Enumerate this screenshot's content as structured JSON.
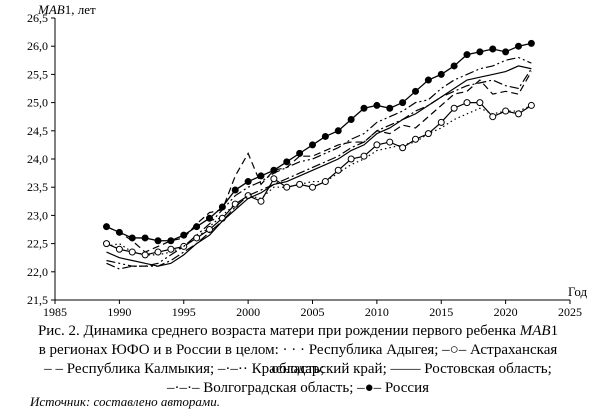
{
  "chart_data": {
    "type": "line",
    "ylabel_italic": "MAB",
    "ylabel_rest": "1, лет",
    "xlabel": "Год",
    "xlim": [
      1985,
      2025
    ],
    "ylim": [
      21.5,
      26.5
    ],
    "xticks": [
      1985,
      1990,
      1995,
      2000,
      2005,
      2010,
      2015,
      2020,
      2025
    ],
    "yticks": [
      "21,5",
      "22,0",
      "22,5",
      "23,0",
      "23,5",
      "24,0",
      "24,5",
      "25,0",
      "25,5",
      "26,0",
      "26,5"
    ],
    "x": [
      1989,
      1990,
      1991,
      1992,
      1993,
      1994,
      1995,
      1996,
      1997,
      1998,
      1999,
      2000,
      2001,
      2002,
      2003,
      2004,
      2005,
      2006,
      2007,
      2008,
      2009,
      2010,
      2011,
      2012,
      2013,
      2014,
      2015,
      2016,
      2017,
      2018,
      2019,
      2020,
      2021,
      2022
    ],
    "series": [
      {
        "name": "Республика Адыгея",
        "style": "dotted",
        "values": [
          22.45,
          22.5,
          22.35,
          22.3,
          22.3,
          22.35,
          22.45,
          22.6,
          22.8,
          23.0,
          23.2,
          23.35,
          23.3,
          23.5,
          23.5,
          23.55,
          23.6,
          23.6,
          23.75,
          23.9,
          24.0,
          24.15,
          24.2,
          24.25,
          24.3,
          24.45,
          24.55,
          24.7,
          24.8,
          24.9,
          24.8,
          24.85,
          24.85,
          24.95
        ]
      },
      {
        "name": "Астраханская область",
        "style": "open-circle",
        "values": [
          22.5,
          22.4,
          22.35,
          22.3,
          22.35,
          22.4,
          22.45,
          22.6,
          22.75,
          22.95,
          23.2,
          23.35,
          23.25,
          23.65,
          23.5,
          23.55,
          23.5,
          23.6,
          23.8,
          24.0,
          24.05,
          24.25,
          24.3,
          24.2,
          24.35,
          24.45,
          24.65,
          24.9,
          25.0,
          25.0,
          24.75,
          24.85,
          24.8,
          24.95
        ]
      },
      {
        "name": "Республика Калмыкия",
        "style": "dashed",
        "values": [
          22.8,
          22.7,
          22.55,
          22.35,
          22.45,
          22.55,
          22.6,
          22.85,
          23.05,
          23.1,
          23.7,
          24.1,
          23.55,
          23.8,
          23.85,
          24.05,
          24.05,
          24.15,
          24.25,
          24.3,
          24.3,
          24.5,
          24.45,
          24.6,
          24.55,
          24.75,
          24.95,
          25.15,
          25.2,
          25.4,
          25.15,
          25.2,
          25.15,
          25.55
        ]
      },
      {
        "name": "Краснодарский край",
        "style": "dash-dot-dot",
        "values": [
          22.2,
          22.15,
          22.1,
          22.1,
          22.15,
          22.3,
          22.45,
          22.65,
          22.85,
          23.1,
          23.35,
          23.5,
          23.6,
          23.75,
          23.85,
          23.95,
          24.0,
          24.1,
          24.2,
          24.35,
          24.45,
          24.65,
          24.75,
          24.85,
          25.0,
          25.05,
          25.25,
          25.4,
          25.5,
          25.6,
          25.65,
          25.75,
          25.8,
          25.7
        ]
      },
      {
        "name": "Ростовская область",
        "style": "solid",
        "values": [
          22.35,
          22.25,
          22.2,
          22.15,
          22.1,
          22.15,
          22.3,
          22.5,
          22.65,
          22.9,
          23.1,
          23.3,
          23.4,
          23.55,
          23.6,
          23.7,
          23.8,
          23.9,
          24.0,
          24.15,
          24.25,
          24.45,
          24.55,
          24.7,
          24.8,
          24.95,
          25.1,
          25.25,
          25.4,
          25.45,
          25.5,
          25.55,
          25.65,
          25.6
        ]
      },
      {
        "name": "Волгоградская область",
        "style": "dash-dot",
        "values": [
          22.15,
          22.05,
          22.1,
          22.1,
          22.1,
          22.2,
          22.35,
          22.5,
          22.7,
          22.9,
          23.15,
          23.35,
          23.45,
          23.55,
          23.65,
          23.75,
          23.85,
          23.95,
          24.05,
          24.2,
          24.3,
          24.5,
          24.6,
          24.7,
          24.85,
          24.95,
          25.1,
          25.2,
          25.3,
          25.35,
          25.4,
          25.3,
          25.25,
          25.6
        ]
      },
      {
        "name": "Россия",
        "style": "filled-circle",
        "values": [
          22.8,
          22.7,
          22.6,
          22.6,
          22.55,
          22.55,
          22.65,
          22.8,
          22.95,
          23.15,
          23.45,
          23.6,
          23.7,
          23.8,
          23.95,
          24.1,
          24.25,
          24.4,
          24.5,
          24.7,
          24.9,
          24.95,
          24.9,
          25.0,
          25.2,
          25.4,
          25.5,
          25.65,
          25.85,
          25.9,
          25.95,
          25.9,
          26.0,
          26.05
        ]
      }
    ]
  },
  "caption": {
    "line1_a": "Рис. 2. Динамика среднего возраста матери при рождении первого ребенка ",
    "line1_b": "MAB",
    "line1_c": "1",
    "line2": "в регионах ЮФО и в России в целом: · · · Республика Адыгея; –○– Астраханская область;",
    "line3": "– – Республика Калмыкия; –·–·· Краснодарский край; —— Ростовская область;",
    "line4": "–·–·– Волгоградская область; –●– Россия"
  },
  "source": "Источник: составлено авторами."
}
